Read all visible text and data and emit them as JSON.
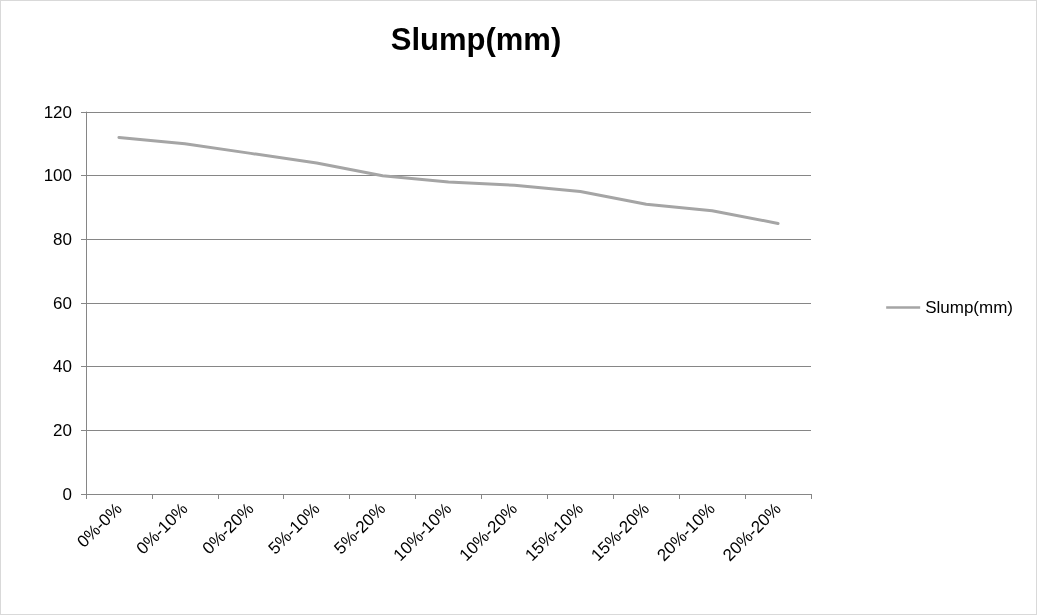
{
  "chart_data": {
    "type": "line",
    "title": "Slump(mm)",
    "categories": [
      "0%-0%",
      "0%-10%",
      "0%-20%",
      "5%-10%",
      "5%-20%",
      "10%-10%",
      "10%-20%",
      "15%-10%",
      "15%-20%",
      "20%-10%",
      "20%-20%"
    ],
    "series": [
      {
        "name": "Slump(mm)",
        "color": "#a5a5a5",
        "values": [
          112,
          110,
          107,
          104,
          100,
          98,
          97,
          95,
          91,
          89,
          85
        ]
      }
    ],
    "ylim": [
      0,
      120
    ],
    "yticks": [
      0,
      20,
      40,
      60,
      80,
      100,
      120
    ],
    "grid": "y",
    "legend": "right",
    "marker": "none",
    "line_style": "solid"
  }
}
